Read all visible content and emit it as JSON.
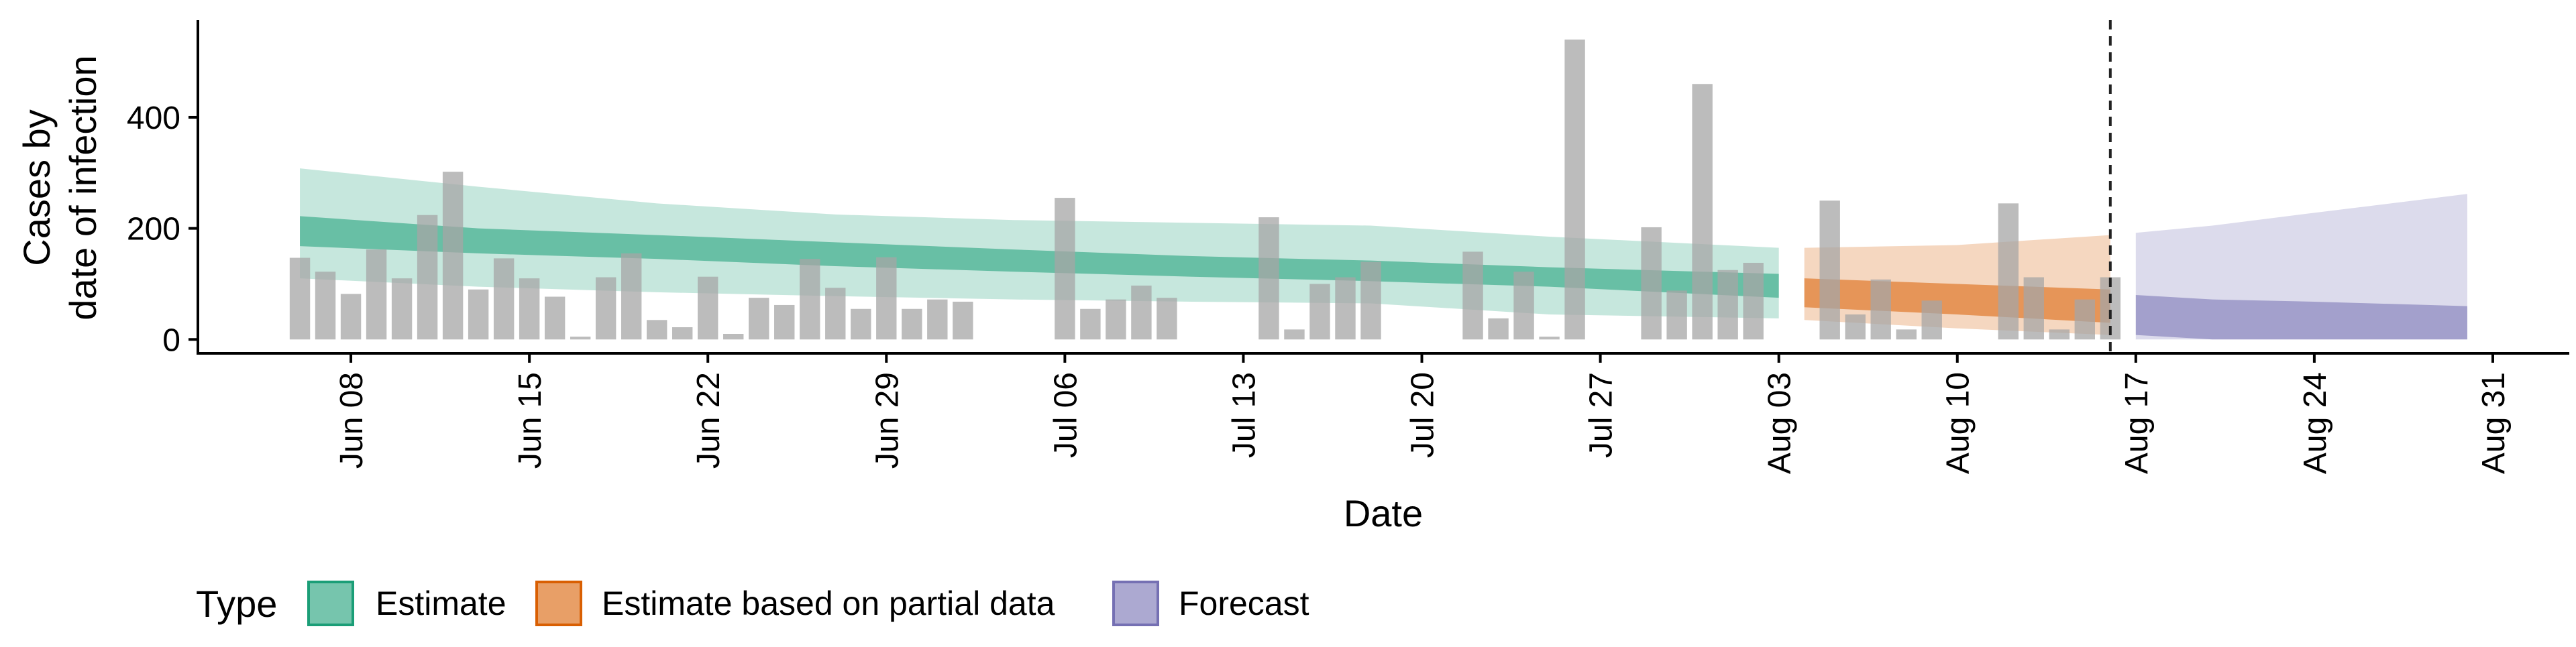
{
  "chart_data": {
    "type": "bar",
    "xlabel": "Date",
    "ylabel_lines": [
      "Cases by",
      "date of infection"
    ],
    "xlim": [
      "2020-06-02",
      "2020-09-03"
    ],
    "ylim": [
      -25,
      575
    ],
    "y_ticks": [
      0,
      200,
      400
    ],
    "x_ticks": [
      {
        "date": "2020-06-08",
        "label": "Jun 08"
      },
      {
        "date": "2020-06-15",
        "label": "Jun 15"
      },
      {
        "date": "2020-06-22",
        "label": "Jun 22"
      },
      {
        "date": "2020-06-29",
        "label": "Jun 29"
      },
      {
        "date": "2020-07-06",
        "label": "Jul 06"
      },
      {
        "date": "2020-07-13",
        "label": "Jul 13"
      },
      {
        "date": "2020-07-20",
        "label": "Jul 20"
      },
      {
        "date": "2020-07-27",
        "label": "Jul 27"
      },
      {
        "date": "2020-08-03",
        "label": "Aug 03"
      },
      {
        "date": "2020-08-10",
        "label": "Aug 10"
      },
      {
        "date": "2020-08-17",
        "label": "Aug 17"
      },
      {
        "date": "2020-08-24",
        "label": "Aug 24"
      },
      {
        "date": "2020-08-31",
        "label": "Aug 31"
      }
    ],
    "vline_date": "2020-08-16",
    "grid": false,
    "legend": {
      "title": "Type",
      "position": "bottom-left",
      "items": [
        {
          "label": "Estimate",
          "color": "#1b9e77"
        },
        {
          "label": "Estimate based on partial data",
          "color": "#d95f02"
        },
        {
          "label": "Forecast",
          "color": "#7570b3"
        }
      ]
    },
    "bars": {
      "color": "#a6a6a6",
      "start_date": "2020-06-06",
      "values": [
        147,
        122,
        82,
        162,
        110,
        224,
        302,
        90,
        146,
        110,
        77,
        5,
        112,
        155,
        35,
        22,
        113,
        10,
        75,
        62,
        145,
        93,
        55,
        148,
        55,
        72,
        68,
        null,
        null,
        null,
        255,
        55,
        72,
        97,
        75,
        null,
        null,
        null,
        220,
        18,
        100,
        112,
        140,
        null,
        null,
        null,
        158,
        38,
        122,
        5,
        540,
        null,
        null,
        202,
        88,
        460,
        125,
        138,
        null,
        null,
        250,
        45,
        108,
        18,
        70,
        null,
        null,
        245,
        112,
        18,
        72,
        112
      ]
    },
    "bands": [
      {
        "name": "Estimate",
        "color": "#1b9e77",
        "dates": [
          "2020-06-06",
          "2020-06-13",
          "2020-06-20",
          "2020-06-27",
          "2020-07-04",
          "2020-07-11",
          "2020-07-18",
          "2020-07-25",
          "2020-08-03"
        ],
        "outer_upper": [
          308,
          275,
          245,
          225,
          215,
          210,
          205,
          185,
          165
        ],
        "outer_lower": [
          110,
          95,
          85,
          78,
          72,
          68,
          65,
          45,
          38
        ],
        "inner_upper": [
          222,
          200,
          188,
          175,
          162,
          150,
          142,
          130,
          118
        ],
        "inner_lower": [
          168,
          155,
          145,
          132,
          122,
          113,
          105,
          95,
          75
        ]
      },
      {
        "name": "Estimate based on partial data",
        "color": "#d95f02",
        "dates": [
          "2020-08-04",
          "2020-08-10",
          "2020-08-16"
        ],
        "outer_upper": [
          165,
          170,
          188
        ],
        "outer_lower": [
          35,
          20,
          8
        ],
        "inner_upper": [
          110,
          100,
          90
        ],
        "inner_lower": [
          58,
          45,
          30
        ]
      },
      {
        "name": "Forecast",
        "color": "#7570b3",
        "dates": [
          "2020-08-17",
          "2020-08-20",
          "2020-08-24",
          "2020-08-30"
        ],
        "outer_upper": [
          192,
          205,
          228,
          262
        ],
        "outer_lower": [
          0,
          0,
          0,
          0
        ],
        "inner_upper": [
          80,
          72,
          68,
          60
        ],
        "inner_lower": [
          8,
          0,
          0,
          0
        ]
      }
    ]
  }
}
